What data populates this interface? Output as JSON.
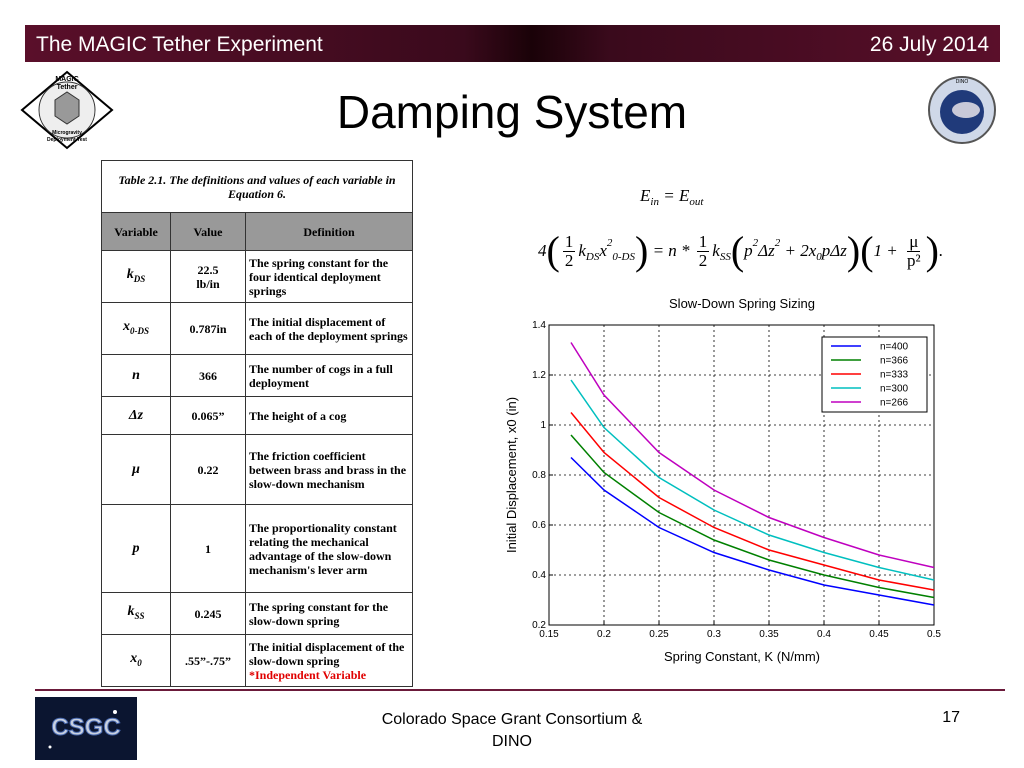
{
  "header": {
    "left": "The MAGIC Tether Experiment",
    "right": "26 July 2014"
  },
  "title": "Damping System",
  "logos": {
    "left": [
      "MAGIC",
      "Tether",
      "Microgravity",
      "Deployment Test"
    ],
    "right": "DINO",
    "footer": "CSGC"
  },
  "table": {
    "caption": "Table 2.1.  The definitions and values of each variable in Equation 6.",
    "headers": [
      "Variable",
      "Value",
      "Definition"
    ],
    "rows": [
      {
        "symbol": "k",
        "sub": "DS",
        "value": "22.5\nlb/in",
        "definition": "The spring constant for the four identical deployment springs"
      },
      {
        "symbol": "x",
        "sub": "0-DS",
        "value": "0.787in",
        "definition": "The initial displacement of each of the deployment springs"
      },
      {
        "symbol": "n",
        "sub": "",
        "value": "366",
        "definition": "The number of cogs in a full deployment"
      },
      {
        "symbol": "Δz",
        "sub": "",
        "value": "0.065”",
        "definition": "The height of a cog"
      },
      {
        "symbol": "μ",
        "sub": "",
        "value": "0.22",
        "definition": "The friction coefficient between brass and brass in the slow-down mechanism"
      },
      {
        "symbol": "p",
        "sub": "",
        "value": "1",
        "definition": "The proportionality constant relating the mechanical advantage of the slow-down mechanism's lever arm"
      },
      {
        "symbol": "k",
        "sub": "SS",
        "value": "0.245",
        "definition": "The spring constant for the slow-down spring"
      },
      {
        "symbol": "x",
        "sub": "0",
        "value": ".55”-.75”",
        "definition": "The initial displacement of the slow-down spring",
        "note": "*Independent Variable"
      }
    ]
  },
  "equations": [
    [
      {
        "t": "E"
      },
      {
        "t": "in",
        "k": "sub"
      },
      {
        "t": " = "
      },
      {
        "t": "E"
      },
      {
        "t": "out",
        "k": "sub"
      }
    ],
    [
      {
        "t": "4"
      },
      {
        "t": "(",
        "k": "big"
      },
      {
        "k": "frac",
        "num": "1",
        "den": "2"
      },
      {
        "t": "k"
      },
      {
        "t": "DS",
        "k": "sub"
      },
      {
        "t": "x"
      },
      {
        "t": "2",
        "k": "sup"
      },
      {
        "t": "0-DS",
        "k": "sub"
      },
      {
        "t": ")",
        "k": "big"
      },
      {
        "t": " = n * "
      },
      {
        "k": "frac",
        "num": "1",
        "den": "2"
      },
      {
        "t": "k"
      },
      {
        "t": "SS",
        "k": "sub"
      },
      {
        "t": "(",
        "k": "big"
      },
      {
        "t": "p"
      },
      {
        "t": "2",
        "k": "sup"
      },
      {
        "t": "Δz"
      },
      {
        "t": "2",
        "k": "sup"
      },
      {
        "t": " + 2x"
      },
      {
        "t": "0",
        "k": "sub"
      },
      {
        "t": "pΔz"
      },
      {
        "t": ")",
        "k": "big"
      },
      {
        "t": "(",
        "k": "big"
      },
      {
        "t": "1 + "
      },
      {
        "k": "frac",
        "num": "μ",
        "den": "p²"
      },
      {
        "t": ")",
        "k": "big"
      },
      {
        "t": "."
      }
    ]
  ],
  "chart_data": {
    "type": "line",
    "title": "Slow-Down Spring Sizing",
    "x_label": "Spring Constant, K (N/mm)",
    "y_label": "Initial Displacement, x0 (in)",
    "x": [
      0.17,
      0.2,
      0.25,
      0.3,
      0.35,
      0.4,
      0.45,
      0.5
    ],
    "series": [
      {
        "name": "n=400",
        "color": "#0000ff",
        "values": [
          0.87,
          0.74,
          0.59,
          0.49,
          0.42,
          0.36,
          0.32,
          0.28
        ]
      },
      {
        "name": "n=366",
        "color": "#008000",
        "values": [
          0.96,
          0.81,
          0.65,
          0.54,
          0.46,
          0.4,
          0.35,
          0.31
        ]
      },
      {
        "name": "n=333",
        "color": "#ff0000",
        "values": [
          1.05,
          0.89,
          0.71,
          0.59,
          0.5,
          0.44,
          0.38,
          0.34
        ]
      },
      {
        "name": "n=300",
        "color": "#00bfbf",
        "values": [
          1.18,
          0.99,
          0.79,
          0.66,
          0.56,
          0.49,
          0.43,
          0.38
        ]
      },
      {
        "name": "n=266",
        "color": "#bf00bf",
        "values": [
          1.33,
          1.12,
          0.89,
          0.74,
          0.63,
          0.55,
          0.48,
          0.43
        ]
      }
    ],
    "xlim": [
      0.15,
      0.5
    ],
    "xticks": [
      0.15,
      0.2,
      0.25,
      0.3,
      0.35,
      0.4,
      0.45,
      0.5
    ],
    "ylim": [
      0.2,
      1.4
    ],
    "yticks": [
      0.2,
      0.4,
      0.6,
      0.8,
      1,
      1.2,
      1.4
    ],
    "grid": true,
    "legend": "upper right"
  },
  "footer": {
    "center": [
      "Colorado Space Grant Consortium  &",
      "DINO"
    ],
    "page": "17"
  }
}
